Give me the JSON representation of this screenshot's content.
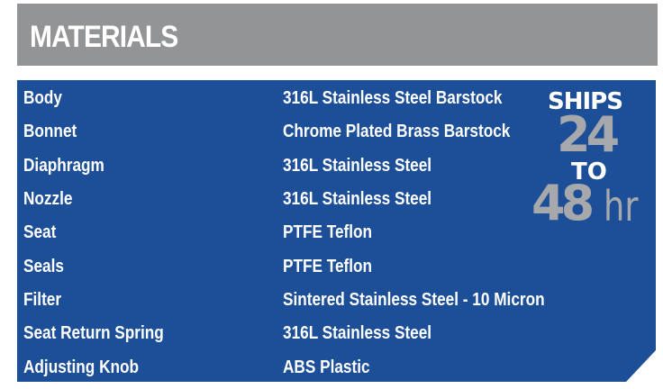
{
  "header": {
    "title": "MATERIALS"
  },
  "materials": [
    {
      "part": "Body",
      "material": "316L Stainless Steel Barstock"
    },
    {
      "part": "Bonnet",
      "material": "Chrome Plated Brass Barstock"
    },
    {
      "part": "Diaphragm",
      "material": "316L Stainless Steel"
    },
    {
      "part": "Nozzle",
      "material": "316L Stainless Steel"
    },
    {
      "part": "Seat",
      "material": "PTFE Teflon"
    },
    {
      "part": "Seals",
      "material": "PTFE Teflon"
    },
    {
      "part": "Filter",
      "material": "Sintered Stainless Steel - 10 Micron"
    },
    {
      "part": "Seat Return Spring",
      "material": "316L Stainless Steel"
    },
    {
      "part": "Adjusting Knob",
      "material": "ABS Plastic"
    }
  ],
  "badge": {
    "line1": "SHIPS",
    "line2": "24",
    "line3": "TO",
    "line4": "48",
    "line5": "hr"
  },
  "colors": {
    "header": "#939496",
    "panel": "#1d4f98",
    "badge_gray": "#a6a8ab"
  }
}
